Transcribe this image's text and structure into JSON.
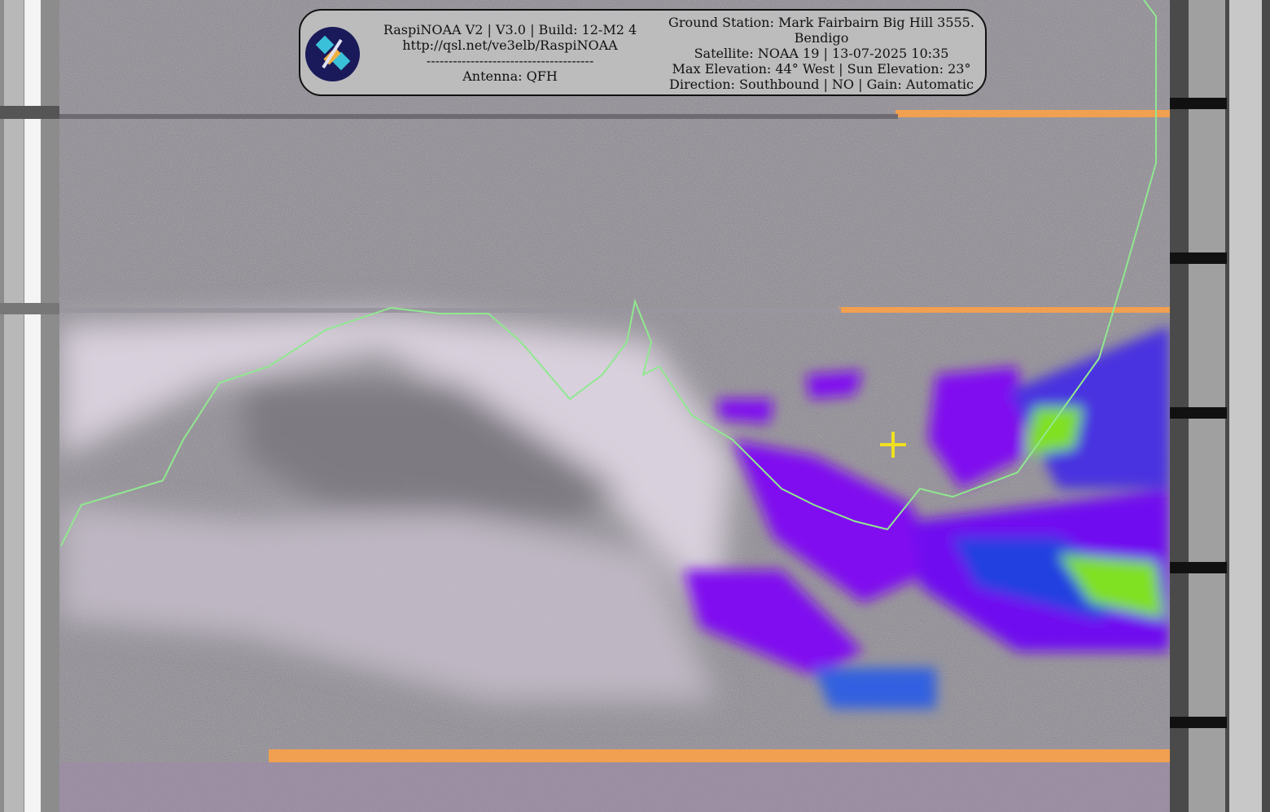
{
  "header": {
    "left_lines": [
      "RaspiNOAA V2 | V3.0 | Build: 12-M2 4",
      "http://qsl.net/ve3elb/RaspiNOAA",
      "--------------------------------------",
      "Antenna: QFH"
    ],
    "right_lines": [
      "Ground Station: Mark Fairbairn Big Hill 3555.",
      "Bendigo",
      "Satellite: NOAA 19 | 13-07-2025 10:35",
      "Max Elevation: 44° West | Sun Elevation: 23°",
      "Direction: Southbound | NO | Gain: Automatic"
    ],
    "logo_icon": "satellite-icon"
  },
  "image": {
    "colors": {
      "coastline": "#90e890",
      "ground_station_marker": "#f0e020",
      "sync_artifact": "#f0a050",
      "cloud_cold": "#8010f0",
      "cloud_colder": "#2040e0",
      "cloud_coldest": "#80e020"
    }
  }
}
